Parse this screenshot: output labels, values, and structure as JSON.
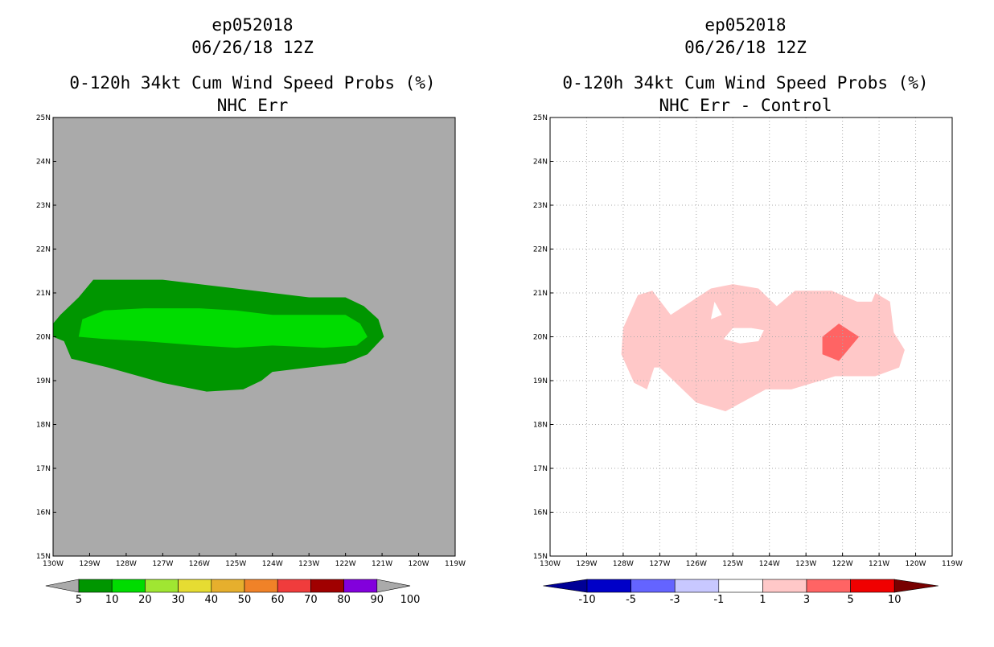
{
  "chart_data": [
    {
      "type": "contour-map",
      "title_lines": [
        "ep052018",
        "06/26/18 12Z",
        "0-120h 34kt Cum Wind Speed Probs (%)",
        "NHC Err"
      ],
      "lon_ticks": [
        "130W",
        "129W",
        "128W",
        "127W",
        "126W",
        "125W",
        "124W",
        "123W",
        "122W",
        "121W",
        "120W",
        "119W"
      ],
      "lat_ticks": [
        "15N",
        "16N",
        "17N",
        "18N",
        "19N",
        "20N",
        "21N",
        "22N",
        "23N",
        "24N",
        "25N"
      ],
      "lon_range": [
        -130,
        -119
      ],
      "lat_range": [
        15,
        25
      ],
      "grid": false,
      "background_color": "#aaaaaa",
      "colorbar": {
        "labels": [
          "5",
          "10",
          "20",
          "30",
          "40",
          "50",
          "60",
          "70",
          "80",
          "90",
          "100"
        ],
        "colors": [
          "#009600",
          "#00dc00",
          "#a0e632",
          "#e6dc32",
          "#e6af2d",
          "#f08228",
          "#f03c3c",
          "#a00000",
          "#8200dc"
        ],
        "low_color": "#aaaaaa",
        "high_color": "#aaaaaa"
      },
      "contours": [
        {
          "level_min": 5,
          "level_max": 10,
          "color": "#009600",
          "points": [
            [
              -129.8,
              20.5
            ],
            [
              -129.3,
              20.9
            ],
            [
              -128.9,
              21.3
            ],
            [
              -128,
              21.3
            ],
            [
              -127,
              21.3
            ],
            [
              -126,
              21.2
            ],
            [
              -125,
              21.1
            ],
            [
              -124,
              21
            ],
            [
              -123,
              20.9
            ],
            [
              -122,
              20.9
            ],
            [
              -121.5,
              20.7
            ],
            [
              -121.1,
              20.4
            ],
            [
              -120.95,
              20
            ],
            [
              -121.4,
              19.6
            ],
            [
              -122,
              19.4
            ],
            [
              -123,
              19.3
            ],
            [
              -124,
              19.2
            ],
            [
              -124.3,
              19
            ],
            [
              -124.8,
              18.8
            ],
            [
              -125.8,
              18.75
            ],
            [
              -127,
              18.95
            ],
            [
              -128.5,
              19.3
            ],
            [
              -129.5,
              19.5
            ],
            [
              -129.7,
              19.9
            ],
            [
              -130,
              20
            ],
            [
              -130,
              20.3
            ]
          ]
        },
        {
          "level_min": 10,
          "level_max": 20,
          "color": "#00dc00",
          "points": [
            [
              -129.2,
              20.4
            ],
            [
              -128.6,
              20.6
            ],
            [
              -127.5,
              20.65
            ],
            [
              -126,
              20.65
            ],
            [
              -125,
              20.6
            ],
            [
              -124,
              20.5
            ],
            [
              -123,
              20.5
            ],
            [
              -122,
              20.5
            ],
            [
              -121.6,
              20.3
            ],
            [
              -121.4,
              20
            ],
            [
              -121.7,
              19.8
            ],
            [
              -122.6,
              19.75
            ],
            [
              -124,
              19.8
            ],
            [
              -125,
              19.75
            ],
            [
              -126,
              19.8
            ],
            [
              -127.5,
              19.9
            ],
            [
              -128.6,
              19.95
            ],
            [
              -129.3,
              20
            ]
          ]
        }
      ]
    },
    {
      "type": "contour-map",
      "title_lines": [
        "ep052018",
        "06/26/18 12Z",
        "0-120h 34kt Cum Wind Speed Probs (%)",
        "NHC Err - Control"
      ],
      "lon_ticks": [
        "130W",
        "129W",
        "128W",
        "127W",
        "126W",
        "125W",
        "124W",
        "123W",
        "122W",
        "121W",
        "120W",
        "119W"
      ],
      "lat_ticks": [
        "15N",
        "16N",
        "17N",
        "18N",
        "19N",
        "20N",
        "21N",
        "22N",
        "23N",
        "24N",
        "25N"
      ],
      "lon_range": [
        -130,
        -119
      ],
      "lat_range": [
        15,
        25
      ],
      "grid": true,
      "background_color": "#ffffff",
      "colorbar": {
        "labels": [
          "-10",
          "-5",
          "-3",
          "-1",
          "1",
          "3",
          "5",
          "10"
        ],
        "colors": [
          "#0000c8",
          "#6464ff",
          "#c8c8ff",
          "#ffffff",
          "#ffc8c8",
          "#ff6464",
          "#f00000"
        ],
        "low_color": "#000096",
        "high_color": "#780000"
      },
      "contours": [
        {
          "level_min": 1,
          "level_max": 3,
          "color": "#ffc8c8",
          "points": [
            [
              -128,
              20.2
            ],
            [
              -127.6,
              20.95
            ],
            [
              -127.2,
              21.05
            ],
            [
              -126.7,
              20.5
            ],
            [
              -125.6,
              21.1
            ],
            [
              -125,
              21.2
            ],
            [
              -124.3,
              21.1
            ],
            [
              -123.8,
              20.7
            ],
            [
              -123.3,
              21.05
            ],
            [
              -122.3,
              21.05
            ],
            [
              -121.6,
              20.8
            ],
            [
              -121.2,
              20.8
            ],
            [
              -121.1,
              21
            ],
            [
              -120.7,
              20.8
            ],
            [
              -120.6,
              20.1
            ],
            [
              -120.3,
              19.7
            ],
            [
              -120.45,
              19.3
            ],
            [
              -121.1,
              19.1
            ],
            [
              -122.2,
              19.1
            ],
            [
              -122.6,
              19
            ],
            [
              -123.4,
              18.8
            ],
            [
              -124.1,
              18.8
            ],
            [
              -125.2,
              18.3
            ],
            [
              -126,
              18.5
            ],
            [
              -127,
              19.3
            ],
            [
              -127.15,
              19.3
            ],
            [
              -127.35,
              18.8
            ],
            [
              -127.7,
              18.95
            ],
            [
              -128.05,
              19.6
            ]
          ],
          "holes": [
            [
              [
                -124.15,
                20.15
              ],
              [
                -124.5,
                20.2
              ],
              [
                -125,
                20.2
              ],
              [
                -125.25,
                19.95
              ],
              [
                -124.8,
                19.85
              ],
              [
                -124.3,
                19.9
              ]
            ],
            [
              [
                -125.5,
                20.8
              ],
              [
                -125.6,
                20.4
              ],
              [
                -125.3,
                20.5
              ]
            ]
          ]
        },
        {
          "level_min": 3,
          "level_max": 5,
          "color": "#ff6464",
          "points": [
            [
              -122.55,
              20
            ],
            [
              -122.1,
              20.3
            ],
            [
              -121.55,
              20
            ],
            [
              -122.1,
              19.45
            ],
            [
              -122.55,
              19.6
            ]
          ]
        }
      ]
    }
  ]
}
